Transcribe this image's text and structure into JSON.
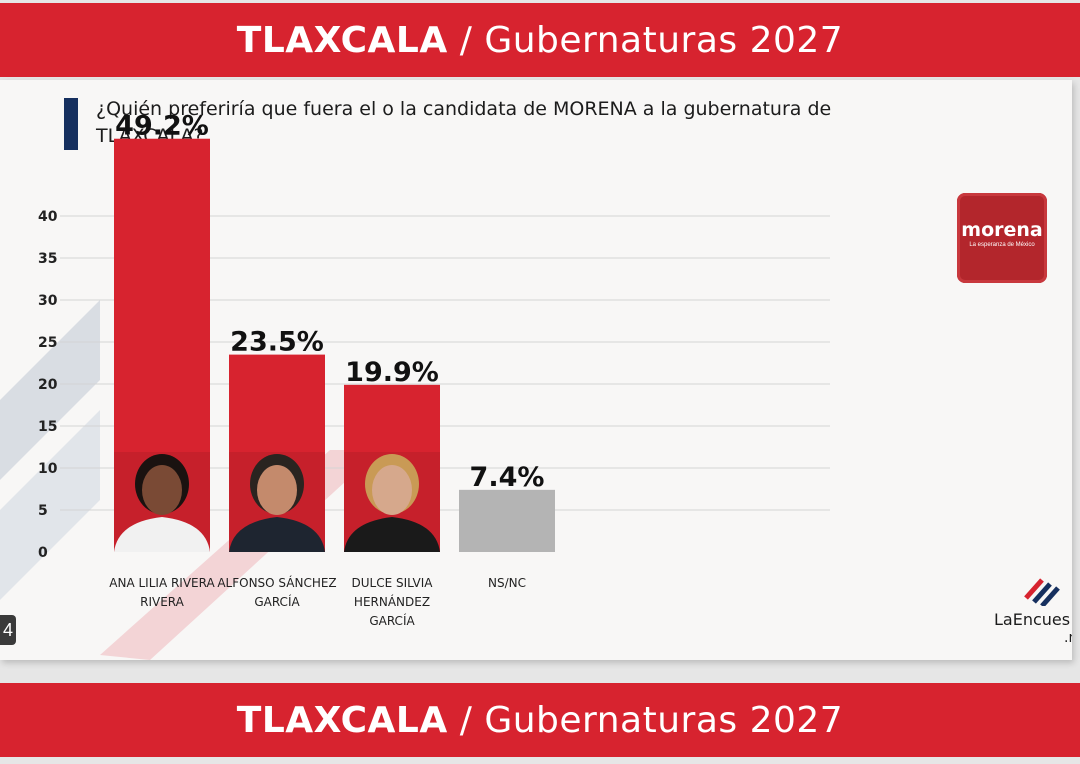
{
  "header": {
    "region": "TLAXCALA",
    "separator": "/",
    "topic": "Gubernaturas 2027"
  },
  "question": "¿Quién preferiría que fuera el o la candidata de MORENA a la gubernatura de TLAXCALA?",
  "party_logo": {
    "name": "morena",
    "tagline": "La esperanza de México",
    "color": "#b3262c"
  },
  "pollster": {
    "name": "LaEncues",
    "suffix": ".m"
  },
  "edge_label": "4",
  "colors": {
    "bar_red": "#d7232f",
    "bar_gray": "#b4b4b4",
    "banner": "#d7232f",
    "accent_navy": "#16305f"
  },
  "chart_data": {
    "type": "bar",
    "categories": [
      [
        "ANA LILIA RIVERA",
        "RIVERA"
      ],
      [
        "ALFONSO SÁNCHEZ",
        "GARCÍA"
      ],
      [
        "DULCE SILVIA",
        "HERNÁNDEZ",
        "GARCÍA"
      ],
      [
        "NS/NC"
      ]
    ],
    "values": [
      49.2,
      23.5,
      19.9,
      7.4
    ],
    "value_labels": [
      "49.2%",
      "23.5%",
      "19.9%",
      "7.4%"
    ],
    "bar_colors": [
      "#d7232f",
      "#d7232f",
      "#d7232f",
      "#b4b4b4"
    ],
    "y_ticks": [
      0,
      5,
      10,
      15,
      20,
      25,
      30,
      35,
      40
    ],
    "ylim": [
      0,
      40
    ],
    "grid": true,
    "title": "",
    "xlabel": "",
    "ylabel": ""
  }
}
